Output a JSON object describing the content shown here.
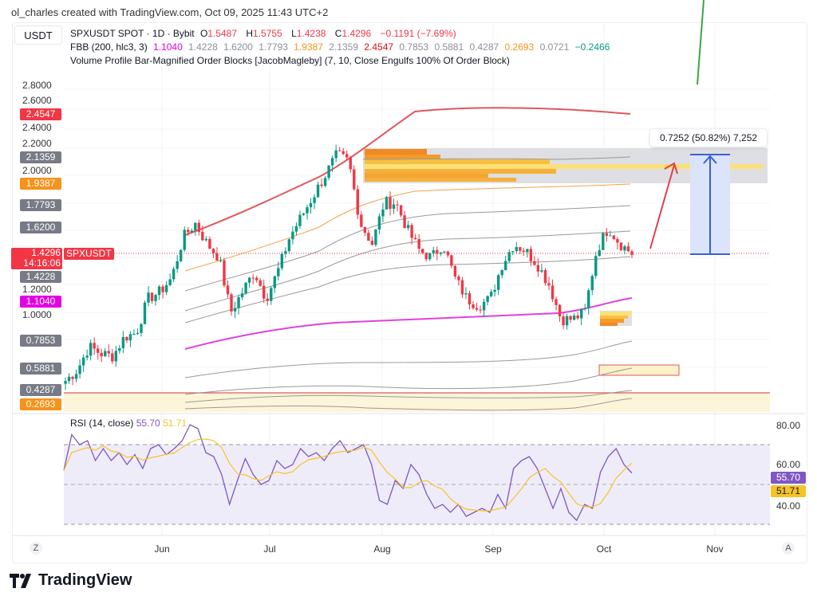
{
  "credit": "ol_charles created with TradingView.com, Oct 09, 2025 11:43 UTC+2",
  "currency": "USDT",
  "legend": {
    "symbol": "SPXUSDT SPOT · 1D · Bybit",
    "o_label": "O",
    "o": "1.5487",
    "h_label": "H",
    "h": "1.5755",
    "l_label": "L",
    "l": "1.4238",
    "c_label": "C",
    "c": "1.4296",
    "change": "−0.1191 (−7.69%)",
    "fbb_name": "FBB (200, hlc3, 3)",
    "fbb_values": [
      "1.1040",
      "1.4228",
      "1.6200",
      "1.7793",
      "1.9387",
      "2.1359",
      "2.4547",
      "0.7853",
      "0.5881",
      "0.4287",
      "0.2693",
      "0.0721",
      "−0.2466"
    ],
    "vp_name": "Volume Profile Bar-Magnified Order Blocks [JacobMagleby] (7, 10, Close Engulfs 100% Of Order Block)"
  },
  "price_axis": {
    "ticks": [
      "2.8000",
      "2.6000",
      "2.4000",
      "2.2000",
      "2.0000",
      "1.2000",
      "1.0000"
    ],
    "labels": [
      {
        "value": "2.4547",
        "color": "#f23645"
      },
      {
        "value": "2.1359",
        "color": "#787b86"
      },
      {
        "value": "1.9387",
        "color": "#f7931a"
      },
      {
        "value": "1.7793",
        "color": "#787b86"
      },
      {
        "value": "1.6200",
        "color": "#787b86"
      },
      {
        "value": "1.4228",
        "color": "#787b86"
      },
      {
        "value": "1.1040",
        "color": "#e400e4"
      },
      {
        "value": "0.7853",
        "color": "#787b86"
      },
      {
        "value": "0.5881",
        "color": "#787b86"
      },
      {
        "value": "0.4287",
        "color": "#787b86"
      },
      {
        "value": "0.2693",
        "color": "#f7931a"
      }
    ],
    "last_price": "1.4296",
    "countdown": "14:16:06",
    "symbol_tag": "SPXUSDT"
  },
  "measure": {
    "label": "0.7252 (50.82%) 7,252"
  },
  "time_axis": {
    "months": [
      "Jun",
      "Jul",
      "Aug",
      "Sep",
      "Oct",
      "Nov"
    ],
    "left_btn": "Z",
    "right_btn": "A"
  },
  "rsi": {
    "name": "RSI (14, close)",
    "value": "55.70",
    "ma_value": "51.71",
    "ticks": [
      "80.00",
      "60.00",
      "40.00"
    ],
    "line_color": "#7e57c2",
    "ma_color": "#f7c325",
    "values": [
      57,
      75,
      70,
      72,
      62,
      68,
      62,
      66,
      60,
      65,
      58,
      68,
      70,
      65,
      68,
      72,
      80,
      78,
      66,
      64,
      55,
      40,
      52,
      63,
      55,
      50,
      52,
      62,
      58,
      60,
      68,
      64,
      66,
      62,
      68,
      72,
      66,
      68,
      70,
      60,
      42,
      40,
      52,
      48,
      60,
      55,
      45,
      38,
      40,
      36,
      40,
      34,
      36,
      38,
      36,
      45,
      38,
      58,
      62,
      64,
      58,
      48,
      38,
      48,
      36,
      32,
      40,
      38,
      56,
      64,
      68,
      60,
      55.7
    ]
  },
  "chart_data": {
    "type": "candlestick",
    "close_samples": [
      0.5,
      0.58,
      0.75,
      0.7,
      0.68,
      0.82,
      0.85,
      1.1,
      1.15,
      1.25,
      1.55,
      1.65,
      1.5,
      1.4,
      1.0,
      1.15,
      1.3,
      1.1,
      1.3,
      1.55,
      1.7,
      1.85,
      2.0,
      2.15,
      2.1,
      1.65,
      1.5,
      1.8,
      1.8,
      1.6,
      1.45,
      1.4,
      1.5,
      1.25,
      1.1,
      1.05,
      1.1,
      1.35,
      1.5,
      1.45,
      1.35,
      1.2,
      0.95,
      0.95,
      1.0,
      1.45,
      1.62,
      1.5,
      1.43
    ],
    "up_color": "#089981",
    "down_color": "#f23645"
  },
  "brand": "TradingView"
}
